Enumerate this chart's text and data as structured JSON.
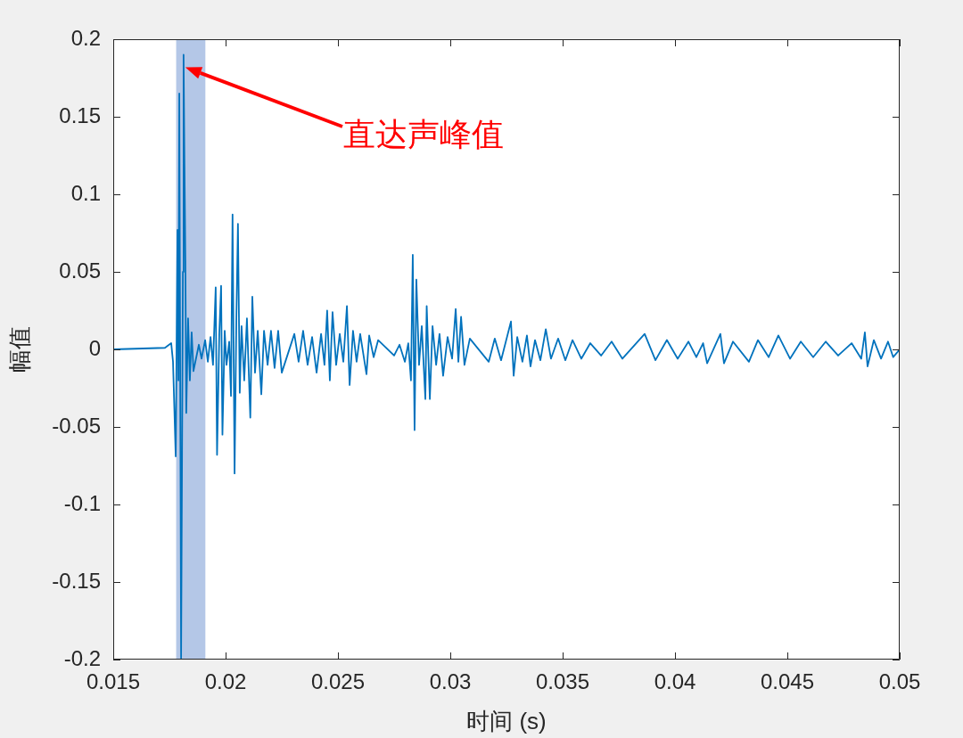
{
  "chart_data": {
    "type": "line",
    "xlabel": "时间 (s)",
    "ylabel": "幅值",
    "xlim": [
      0.015,
      0.05
    ],
    "xticks": [
      0.015,
      0.02,
      0.025,
      0.03,
      0.035,
      0.04,
      0.045,
      0.05
    ],
    "ylim": [
      -0.2,
      0.2
    ],
    "yticks": [
      -0.2,
      -0.15,
      -0.1,
      -0.05,
      0,
      0.05,
      0.1,
      0.15,
      0.2
    ],
    "bands": [
      {
        "axis": "x",
        "from": 0.0178,
        "to": 0.0191,
        "color": "#b4c7e7"
      }
    ],
    "annotations": [
      "直达声峰值"
    ],
    "series": [
      {
        "color": "#0072bd",
        "x": [
          0.015,
          0.0173,
          0.01758,
          0.01766,
          0.01778,
          0.01786,
          0.0179,
          0.01794,
          0.01802,
          0.0181,
          0.01813,
          0.01817,
          0.01821,
          0.01825,
          0.01833,
          0.01841,
          0.01849,
          0.01857,
          0.01881,
          0.01893,
          0.01909,
          0.01921,
          0.01933,
          0.01944,
          0.01956,
          0.01962,
          0.01972,
          0.0198,
          0.01986,
          0.01996,
          0.02004,
          0.02016,
          0.02024,
          0.02031,
          0.0204,
          0.02048,
          0.02055,
          0.02063,
          0.02071,
          0.02083,
          0.02095,
          0.0211,
          0.02119,
          0.02131,
          0.02143,
          0.02159,
          0.02171,
          0.02187,
          0.02202,
          0.02218,
          0.02234,
          0.0225,
          0.02306,
          0.02325,
          0.02345,
          0.02365,
          0.02385,
          0.02405,
          0.02425,
          0.0244,
          0.02452,
          0.02464,
          0.02476,
          0.02492,
          0.02508,
          0.02524,
          0.0254,
          0.02552,
          0.02567,
          0.02583,
          0.02599,
          0.02627,
          0.02639,
          0.02659,
          0.02679,
          0.0275,
          0.02774,
          0.02798,
          0.02813,
          0.02825,
          0.02833,
          0.02841,
          0.02849,
          0.02861,
          0.02873,
          0.02889,
          0.02895,
          0.02909,
          0.02921,
          0.02937,
          0.02952,
          0.02968,
          0.02988,
          0.03008,
          0.03024,
          0.03036,
          0.03048,
          0.03063,
          0.03087,
          0.03171,
          0.03198,
          0.03226,
          0.0327,
          0.03282,
          0.03298,
          0.03321,
          0.03341,
          0.03357,
          0.03377,
          0.03401,
          0.03425,
          0.03448,
          0.0348,
          0.03512,
          0.03544,
          0.03583,
          0.03623,
          0.03671,
          0.03718,
          0.03766,
          0.03865,
          0.03913,
          0.03964,
          0.04012,
          0.0406,
          0.04095,
          0.04125,
          0.04143,
          0.04202,
          0.04218,
          0.04258,
          0.04329,
          0.04369,
          0.04417,
          0.0446,
          0.04512,
          0.0456,
          0.04615,
          0.04671,
          0.04726,
          0.04786,
          0.04829,
          0.04845,
          0.04857,
          0.04885,
          0.04917,
          0.04948,
          0.04971,
          0.05
        ],
        "values": [
          0,
          0.001,
          0.004,
          -0.008,
          -0.069,
          0.077,
          -0.02,
          0.165,
          -0.199,
          0.05,
          0.19,
          0.12,
          0.057,
          -0.041,
          0.02,
          -0.02,
          0.011,
          -0.014,
          0.003,
          -0.006,
          0.006,
          -0.008,
          0.008,
          -0.01,
          0.04,
          -0.068,
          0.01,
          0.041,
          -0.055,
          0.012,
          -0.01,
          0.005,
          -0.03,
          0.087,
          -0.08,
          0.02,
          0.081,
          -0.028,
          0.015,
          -0.02,
          0.02,
          -0.044,
          0.034,
          -0.015,
          0.012,
          -0.029,
          0.012,
          -0.01,
          0.012,
          -0.012,
          0.012,
          -0.015,
          0.01,
          -0.008,
          0.012,
          -0.01,
          0.008,
          -0.015,
          0.01,
          -0.01,
          0.025,
          -0.02,
          0.024,
          -0.01,
          0.01,
          -0.008,
          0.028,
          -0.023,
          0.012,
          -0.008,
          0.01,
          -0.016,
          0.009,
          -0.005,
          0.006,
          -0.004,
          0.003,
          -0.008,
          0.004,
          -0.02,
          0.061,
          -0.052,
          0.045,
          -0.01,
          0.015,
          -0.032,
          0.028,
          -0.032,
          0.015,
          -0.01,
          0.01,
          -0.017,
          0.008,
          -0.006,
          0.026,
          -0.008,
          0.021,
          -0.01,
          0.007,
          -0.008,
          0.007,
          -0.007,
          0.018,
          -0.017,
          0.008,
          -0.008,
          0.009,
          -0.011,
          0.006,
          -0.007,
          0.013,
          -0.006,
          0.007,
          -0.007,
          0.006,
          -0.006,
          0.004,
          -0.004,
          0.005,
          -0.006,
          0.01,
          -0.007,
          0.006,
          -0.006,
          0.005,
          -0.005,
          0.004,
          -0.009,
          0.01,
          -0.009,
          0.005,
          -0.008,
          0.006,
          -0.005,
          0.009,
          -0.006,
          0.005,
          -0.005,
          0.005,
          -0.004,
          0.004,
          -0.006,
          0.011,
          -0.011,
          0.006,
          -0.006,
          0.005,
          -0.005,
          0
        ]
      }
    ]
  }
}
